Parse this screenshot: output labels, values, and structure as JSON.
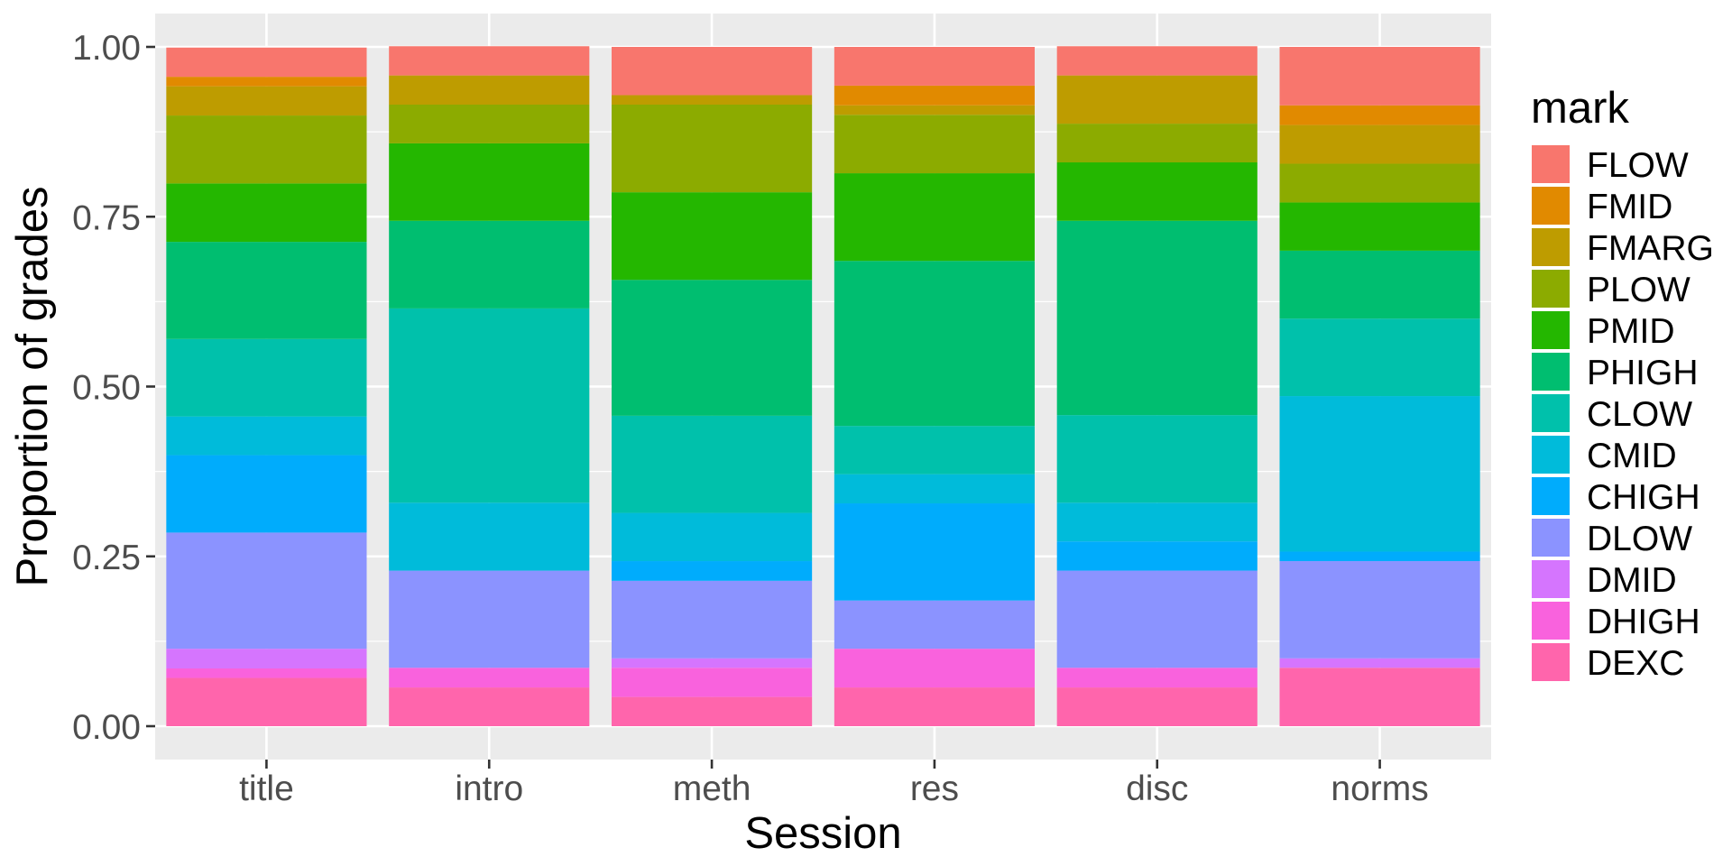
{
  "chart_data": {
    "type": "bar",
    "stacked": true,
    "xlabel": "Session",
    "ylabel": "Proportion of grades",
    "ylim": [
      0,
      1
    ],
    "yticks": [
      "0.00",
      "0.25",
      "0.50",
      "0.75",
      "1.00"
    ],
    "ytick_values": [
      0,
      0.25,
      0.5,
      0.75,
      1
    ],
    "categories": [
      "title",
      "intro",
      "meth",
      "res",
      "disc",
      "norms"
    ],
    "legend": {
      "title": "mark",
      "placement": "right"
    },
    "grid": true,
    "series": [
      {
        "name": "FLOW",
        "color": "#F8766D",
        "values": [
          0.043,
          0.043,
          0.071,
          0.057,
          0.043,
          0.086
        ]
      },
      {
        "name": "FMID",
        "color": "#E18A00",
        "values": [
          0.014,
          0.0,
          0.0,
          0.029,
          0.0,
          0.029
        ]
      },
      {
        "name": "FMARG",
        "color": "#BE9C00",
        "values": [
          0.043,
          0.043,
          0.014,
          0.014,
          0.071,
          0.057
        ]
      },
      {
        "name": "PLOW",
        "color": "#8CAB00",
        "values": [
          0.1,
          0.057,
          0.129,
          0.086,
          0.057,
          0.057
        ]
      },
      {
        "name": "PMID",
        "color": "#24B700",
        "values": [
          0.086,
          0.114,
          0.129,
          0.129,
          0.086,
          0.071
        ]
      },
      {
        "name": "PHIGH",
        "color": "#00BE70",
        "values": [
          0.143,
          0.129,
          0.2,
          0.243,
          0.286,
          0.1
        ]
      },
      {
        "name": "CLOW",
        "color": "#00C1AB",
        "values": [
          0.114,
          0.286,
          0.143,
          0.071,
          0.129,
          0.114
        ]
      },
      {
        "name": "CMID",
        "color": "#00BBDA",
        "values": [
          0.057,
          0.1,
          0.071,
          0.043,
          0.057,
          0.229
        ]
      },
      {
        "name": "CHIGH",
        "color": "#00ACFC",
        "values": [
          0.114,
          0.0,
          0.029,
          0.143,
          0.043,
          0.014
        ]
      },
      {
        "name": "DLOW",
        "color": "#8B93FF",
        "values": [
          0.171,
          0.143,
          0.114,
          0.071,
          0.143,
          0.143
        ]
      },
      {
        "name": "DMID",
        "color": "#D575FE",
        "values": [
          0.029,
          0.0,
          0.014,
          0.0,
          0.0,
          0.014
        ]
      },
      {
        "name": "DHIGH",
        "color": "#F962DD",
        "values": [
          0.014,
          0.029,
          0.043,
          0.057,
          0.029,
          0.0
        ]
      },
      {
        "name": "DEXC",
        "color": "#FF65AC",
        "values": [
          0.071,
          0.057,
          0.043,
          0.057,
          0.057,
          0.086
        ]
      }
    ],
    "colors": {
      "panel_background": "#EBEBEB",
      "grid_line": "#FFFFFF"
    }
  }
}
